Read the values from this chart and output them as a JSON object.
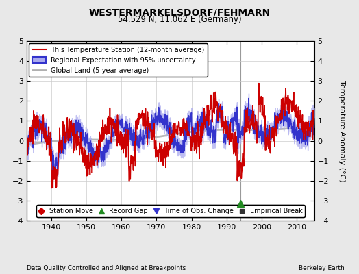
{
  "title": "WESTERMARKELSDORF/FEHMARN",
  "subtitle": "54.529 N, 11.062 E (Germany)",
  "ylabel": "Temperature Anomaly (°C)",
  "xlabel_note": "Data Quality Controlled and Aligned at Breakpoints",
  "credit": "Berkeley Earth",
  "xmin": 1933,
  "xmax": 2015,
  "ymin": -4,
  "ymax": 5,
  "yticks": [
    -4,
    -3,
    -2,
    -1,
    0,
    1,
    2,
    3,
    4,
    5
  ],
  "xticks": [
    1940,
    1950,
    1960,
    1970,
    1980,
    1990,
    2000,
    2010
  ],
  "bg_color": "#e8e8e8",
  "plot_bg_color": "#ffffff",
  "grid_color": "#cccccc",
  "vertical_line_x": 1994,
  "marker_green_triangle_x": 1994,
  "marker_green_triangle_y": -3.15,
  "legend_lines": [
    {
      "label": "This Temperature Station (12-month average)",
      "color": "#cc0000",
      "lw": 1.2
    },
    {
      "label": "Regional Expectation with 95% uncertainty",
      "color": "#3333cc",
      "lw": 1.2,
      "fill": "#aaaaee"
    },
    {
      "label": "Global Land (5-year average)",
      "color": "#b0b0b0",
      "lw": 2.0
    }
  ],
  "legend_markers": [
    {
      "label": "Station Move",
      "color": "#cc0000",
      "marker": "D"
    },
    {
      "label": "Record Gap",
      "color": "#228B22",
      "marker": "^"
    },
    {
      "label": "Time of Obs. Change",
      "color": "#3333cc",
      "marker": "v"
    },
    {
      "label": "Empirical Break",
      "color": "#333333",
      "marker": "s"
    }
  ]
}
